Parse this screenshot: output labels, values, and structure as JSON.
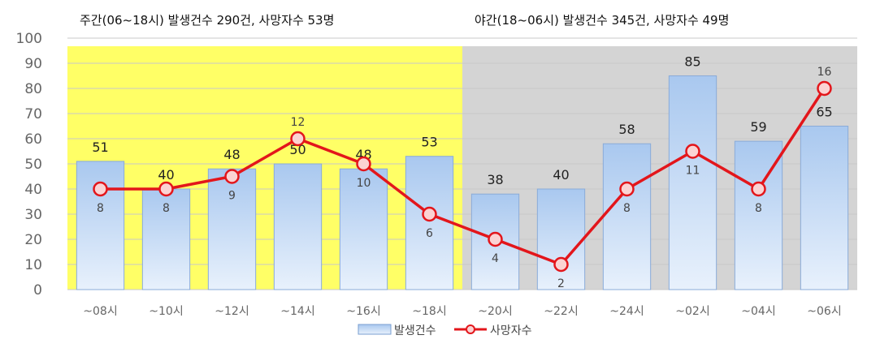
{
  "chart_data": {
    "type": "bar",
    "categories": [
      "~08시",
      "~10시",
      "~12시",
      "~14시",
      "~16시",
      "~18시",
      "~20시",
      "~22시",
      "~24시",
      "~02시",
      "~04시",
      "~06시"
    ],
    "series": [
      {
        "name": "발생건수",
        "type": "bar",
        "color": "#a9c8ef",
        "values": [
          51,
          40,
          48,
          50,
          48,
          53,
          38,
          40,
          58,
          85,
          59,
          65
        ]
      },
      {
        "name": "사망자수",
        "type": "line",
        "color": "#e3161b",
        "values": [
          8,
          8,
          9,
          12,
          10,
          6,
          4,
          2,
          8,
          11,
          8,
          16
        ],
        "plot_values": [
          40,
          40,
          45,
          60,
          50,
          30,
          20,
          10,
          40,
          55,
          40,
          80
        ]
      }
    ],
    "yticks": [
      "0",
      "10",
      "20",
      "30",
      "40",
      "50",
      "60",
      "70",
      "80",
      "90",
      "100"
    ],
    "ylim": [
      0,
      100
    ],
    "grid": true,
    "legend_position": "bottom",
    "regions": [
      {
        "title": "주간(06~18시) 발생건수 290건, 사망자수 53명",
        "color": "#ffff66",
        "start": 0,
        "end": 6
      },
      {
        "title": "야간(18~06시) 발생건수 345건, 사망자수 49명",
        "color": "#d4d4d4",
        "start": 6,
        "end": 12
      }
    ]
  }
}
